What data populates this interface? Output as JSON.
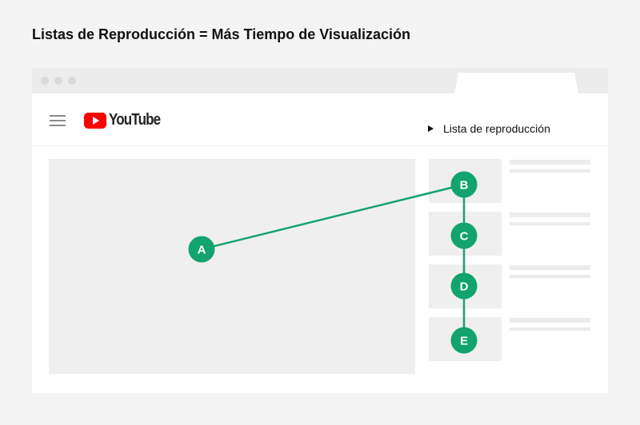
{
  "title": "Listas de Reproducción = Más Tiempo de Visualización",
  "header": {
    "logo": "YouTube",
    "playlist_label": "Lista de reproducción"
  },
  "colors": {
    "accent": "#12a36f",
    "youtube_red": "#ff0000"
  },
  "nodes": [
    {
      "label": "A"
    },
    {
      "label": "B"
    },
    {
      "label": "C"
    },
    {
      "label": "D"
    },
    {
      "label": "E"
    }
  ]
}
